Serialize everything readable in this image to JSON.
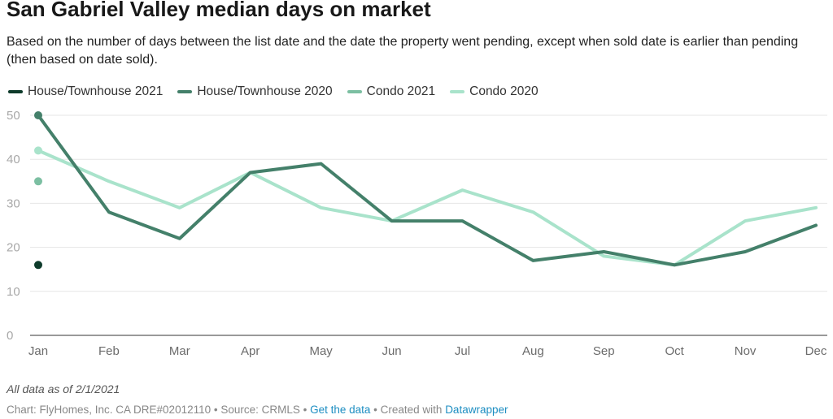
{
  "title": "San Gabriel Valley median days on market",
  "subtitle": "Based on the number of days between the list date and the date the property went pending, except when sold date is earlier than pending (then based on date sold).",
  "note": "All data as of 2/1/2021",
  "footer": {
    "prefix": "Chart: FlyHomes, Inc. CA DRE#02012110 • Source: CRMLS • ",
    "data_link": "Get the data",
    "middle": " • Created with ",
    "tool_link": "Datawrapper"
  },
  "chart_data": {
    "type": "line",
    "categories": [
      "Jan",
      "Feb",
      "Mar",
      "Apr",
      "May",
      "Jun",
      "Jul",
      "Aug",
      "Sep",
      "Oct",
      "Nov",
      "Dec"
    ],
    "ylim": [
      0,
      50
    ],
    "yticks": [
      0,
      10,
      20,
      30,
      40,
      50
    ],
    "grid": true,
    "legend_position": "top-left",
    "series": [
      {
        "name": "House/Townhouse 2021",
        "color": "#0e3b2b",
        "values": [
          16,
          null,
          null,
          null,
          null,
          null,
          null,
          null,
          null,
          null,
          null,
          null
        ]
      },
      {
        "name": "House/Townhouse 2020",
        "color": "#44806a",
        "values": [
          50,
          28,
          22,
          37,
          39,
          26,
          26,
          17,
          19,
          16,
          19,
          25
        ]
      },
      {
        "name": "Condo 2021",
        "color": "#7cbfa2",
        "values": [
          35,
          null,
          null,
          null,
          null,
          null,
          null,
          null,
          null,
          null,
          null,
          null
        ]
      },
      {
        "name": "Condo 2020",
        "color": "#a9e3cb",
        "values": [
          42,
          35,
          29,
          37,
          29,
          26,
          33,
          28,
          18,
          16,
          26,
          29
        ]
      }
    ]
  }
}
